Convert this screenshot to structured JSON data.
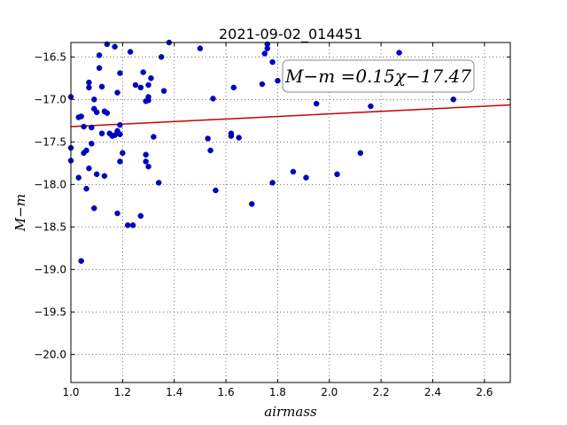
{
  "chart_data": {
    "type": "scatter",
    "title": "2021-09-02_014451",
    "xlabel": "airmass",
    "ylabel": "M−m",
    "xlim": [
      1.0,
      2.7
    ],
    "ylim": [
      -20.33,
      -16.33
    ],
    "ylim_display": "inverted (less negative at top)",
    "xticks": [
      1.0,
      1.2,
      1.4,
      1.6,
      1.8,
      2.0,
      2.2,
      2.4,
      2.6
    ],
    "xtick_labels": [
      "1.0",
      "1.2",
      "1.4",
      "1.6",
      "1.8",
      "2.0",
      "2.2",
      "2.4",
      "2.6"
    ],
    "yticks": [
      -16.5,
      -17.0,
      -17.5,
      -18.0,
      -18.5,
      -19.0,
      -19.5,
      -20.0
    ],
    "ytick_labels": [
      "−16.5",
      "−17.0",
      "−17.5",
      "−18.0",
      "−18.5",
      "−19.0",
      "−19.5",
      "−20.0"
    ],
    "grid": true,
    "point_color": "#0000cc",
    "fit_color": "#cc0000",
    "fit": {
      "slope": 0.15,
      "intercept": -17.47
    },
    "annotation": "M−m =0.15χ−17.47",
    "points": [
      [
        1.0,
        -16.97
      ],
      [
        1.0,
        -17.57
      ],
      [
        1.0,
        -17.72
      ],
      [
        1.03,
        -17.21
      ],
      [
        1.04,
        -17.2
      ],
      [
        1.05,
        -17.32
      ],
      [
        1.05,
        -17.63
      ],
      [
        1.06,
        -17.6
      ],
      [
        1.07,
        -16.8
      ],
      [
        1.07,
        -16.86
      ],
      [
        1.08,
        -17.33
      ],
      [
        1.07,
        -17.81
      ],
      [
        1.06,
        -18.05
      ],
      [
        1.03,
        -17.92
      ],
      [
        1.04,
        -18.9
      ],
      [
        1.09,
        -17.0
      ],
      [
        1.09,
        -17.11
      ],
      [
        1.08,
        -17.52
      ],
      [
        1.1,
        -17.15
      ],
      [
        1.11,
        -16.63
      ],
      [
        1.11,
        -16.48
      ],
      [
        1.12,
        -16.85
      ],
      [
        1.12,
        -17.4
      ],
      [
        1.13,
        -17.14
      ],
      [
        1.14,
        -17.16
      ],
      [
        1.15,
        -17.4
      ],
      [
        1.16,
        -17.43
      ],
      [
        1.17,
        -17.42
      ],
      [
        1.18,
        -17.37
      ],
      [
        1.19,
        -17.41
      ],
      [
        1.19,
        -17.3
      ],
      [
        1.18,
        -16.92
      ],
      [
        1.19,
        -16.69
      ],
      [
        1.2,
        -17.63
      ],
      [
        1.19,
        -17.73
      ],
      [
        1.13,
        -17.9
      ],
      [
        1.1,
        -17.88
      ],
      [
        1.09,
        -18.28
      ],
      [
        1.14,
        -16.35
      ],
      [
        1.17,
        -16.38
      ],
      [
        1.18,
        -18.34
      ],
      [
        1.22,
        -18.48
      ],
      [
        1.24,
        -18.48
      ],
      [
        1.25,
        -16.83
      ],
      [
        1.27,
        -16.86
      ],
      [
        1.23,
        -16.44
      ],
      [
        1.28,
        -16.68
      ],
      [
        1.29,
        -17.02
      ],
      [
        1.3,
        -16.97
      ],
      [
        1.3,
        -17.01
      ],
      [
        1.31,
        -16.75
      ],
      [
        1.3,
        -16.83
      ],
      [
        1.32,
        -17.44
      ],
      [
        1.29,
        -17.65
      ],
      [
        1.29,
        -17.73
      ],
      [
        1.3,
        -17.79
      ],
      [
        1.27,
        -18.37
      ],
      [
        1.34,
        -17.98
      ],
      [
        1.35,
        -16.5
      ],
      [
        1.36,
        -16.9
      ],
      [
        1.38,
        -16.33
      ],
      [
        1.5,
        -16.4
      ],
      [
        1.53,
        -17.46
      ],
      [
        1.54,
        -17.6
      ],
      [
        1.55,
        -16.99
      ],
      [
        1.56,
        -18.07
      ],
      [
        1.62,
        -17.4
      ],
      [
        1.62,
        -17.43
      ],
      [
        1.63,
        -16.86
      ],
      [
        1.65,
        -17.45
      ],
      [
        1.7,
        -18.23
      ],
      [
        1.74,
        -16.82
      ],
      [
        1.75,
        -16.46
      ],
      [
        1.76,
        -16.35
      ],
      [
        1.76,
        -16.4
      ],
      [
        1.78,
        -16.56
      ],
      [
        1.78,
        -17.98
      ],
      [
        1.8,
        -16.78
      ],
      [
        1.86,
        -17.85
      ],
      [
        1.91,
        -17.92
      ],
      [
        1.95,
        -17.05
      ],
      [
        2.03,
        -17.88
      ],
      [
        2.12,
        -17.63
      ],
      [
        2.16,
        -17.08
      ],
      [
        2.27,
        -16.45
      ],
      [
        2.48,
        -17.0
      ]
    ]
  }
}
